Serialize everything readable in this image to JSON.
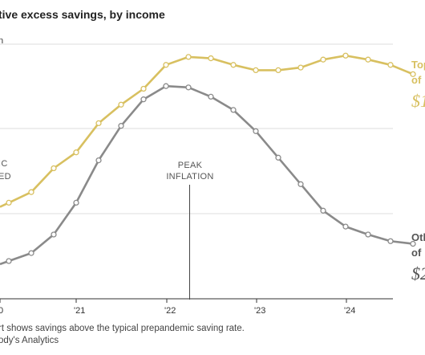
{
  "chart_data": {
    "type": "line",
    "title": "tive excess savings, by income",
    "unit_label": "n",
    "x_tick_labels": [
      "0",
      "'21",
      "'22",
      "'23",
      "'24"
    ],
    "annotations": {
      "left": [
        "IC",
        "ED"
      ],
      "peak": [
        "PEAK",
        "INFLATION"
      ]
    },
    "series": [
      {
        "name": "Top",
        "label_line1": "Top",
        "label_line2": "of",
        "label_value": "$1",
        "color": "#d8c060",
        "marker": "circle",
        "values": [
          2.2,
          2.6,
          3.5,
          4.1,
          5.2,
          5.9,
          6.5,
          7.4,
          7.7,
          7.65,
          7.4,
          7.2,
          7.2,
          7.3,
          7.6,
          7.75,
          7.6,
          7.4,
          7.05
        ]
      },
      {
        "name": "Oth",
        "label_line1": "Oth",
        "label_line2": "of",
        "label_value": "$2",
        "color": "#8a8a8a",
        "marker": "circle",
        "values": [
          0.0,
          0.3,
          1.0,
          2.2,
          3.8,
          5.1,
          6.1,
          6.6,
          6.55,
          6.2,
          5.7,
          4.9,
          3.9,
          2.9,
          1.9,
          1.3,
          1.0,
          0.75,
          0.65
        ]
      }
    ],
    "grid": "horizontal",
    "legend": "direct labels at right"
  },
  "footnote": {
    "line1": "rt shows savings above the typical prepandemic saving rate.",
    "line2": "ody's Analytics"
  },
  "colors": {
    "gold": "#d8c060",
    "gray": "#8a8a8a",
    "grid": "#dddddd",
    "axis": "#333333"
  }
}
